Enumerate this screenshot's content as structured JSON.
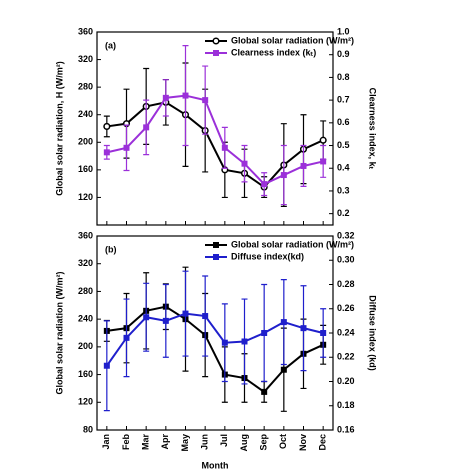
{
  "chart_data": [
    {
      "type": "line",
      "title": "(a)",
      "ylabel": "Global solar radiation, H (W/m²)",
      "y2label": "Clearness index, kₜ",
      "ylim": [
        80,
        360
      ],
      "yticks": [
        120,
        160,
        200,
        240,
        280,
        320,
        360
      ],
      "y2lim": [
        0.15,
        1.0
      ],
      "y2ticks": [
        0.2,
        0.3,
        0.4,
        0.5,
        0.6,
        0.7,
        0.8,
        0.9,
        {
          "value": 1.0,
          "label": "1.0"
        }
      ],
      "series": [
        {
          "name": "Global solar radiation (W/m²)",
          "color": "#000000",
          "marker": "circle",
          "values": [
            223,
            227,
            252,
            258,
            240,
            217,
            160,
            155,
            135,
            167,
            190,
            203
          ],
          "errors": [
            15,
            50,
            55,
            33,
            75,
            60,
            40,
            35,
            15,
            60,
            50,
            28
          ]
        },
        {
          "name": "Clearness index (kₜ)",
          "color": "#9b30d9",
          "axis": "y2",
          "marker": "square",
          "values": [
            0.47,
            0.49,
            0.58,
            0.71,
            0.72,
            0.7,
            0.49,
            0.42,
            0.33,
            0.37,
            0.41,
            0.43
          ],
          "errors": [
            0.03,
            0.1,
            0.12,
            0.08,
            0.22,
            0.15,
            0.09,
            0.08,
            0.05,
            0.13,
            0.09,
            0.07
          ]
        }
      ]
    },
    {
      "type": "line",
      "title": "(b)",
      "xlabel": "Month",
      "ylabel": "Global solar radiation (W/m²)",
      "y2label": "Diffuse index (kd)",
      "categories": [
        "Jan",
        "Feb",
        "Mar",
        "Apr",
        "May",
        "Jun",
        "Jul",
        "Aug",
        "Sep",
        "Oct",
        "Nov",
        "Dec"
      ],
      "ylim": [
        80,
        360
      ],
      "yticks": [
        80,
        120,
        160,
        200,
        240,
        280,
        320,
        360
      ],
      "y2lim": [
        0.16,
        0.32
      ],
      "y2ticks": [
        0.16,
        0.18,
        {
          "value": 0.2,
          "label": "0.20"
        },
        0.22,
        0.24,
        0.26,
        0.28,
        {
          "value": 0.3,
          "label": "0.30"
        },
        0.32
      ],
      "series": [
        {
          "name": "Global solar radiation (W/m²)",
          "color": "#000000",
          "marker": "square",
          "values": [
            223,
            227,
            252,
            258,
            240,
            217,
            160,
            155,
            135,
            167,
            190,
            203
          ],
          "errors": [
            15,
            50,
            55,
            33,
            75,
            60,
            40,
            35,
            15,
            60,
            50,
            28
          ]
        },
        {
          "name": "Diffuse index(kd)",
          "color": "#1f1fcc",
          "axis": "y2",
          "marker": "square",
          "values": [
            0.213,
            0.236,
            0.253,
            0.25,
            0.256,
            0.254,
            0.232,
            0.233,
            0.24,
            0.249,
            0.244,
            0.24
          ],
          "errors": [
            0.037,
            0.032,
            0.028,
            0.03,
            0.035,
            0.033,
            0.032,
            0.035,
            0.04,
            0.035,
            0.035,
            0.02
          ]
        }
      ]
    }
  ]
}
